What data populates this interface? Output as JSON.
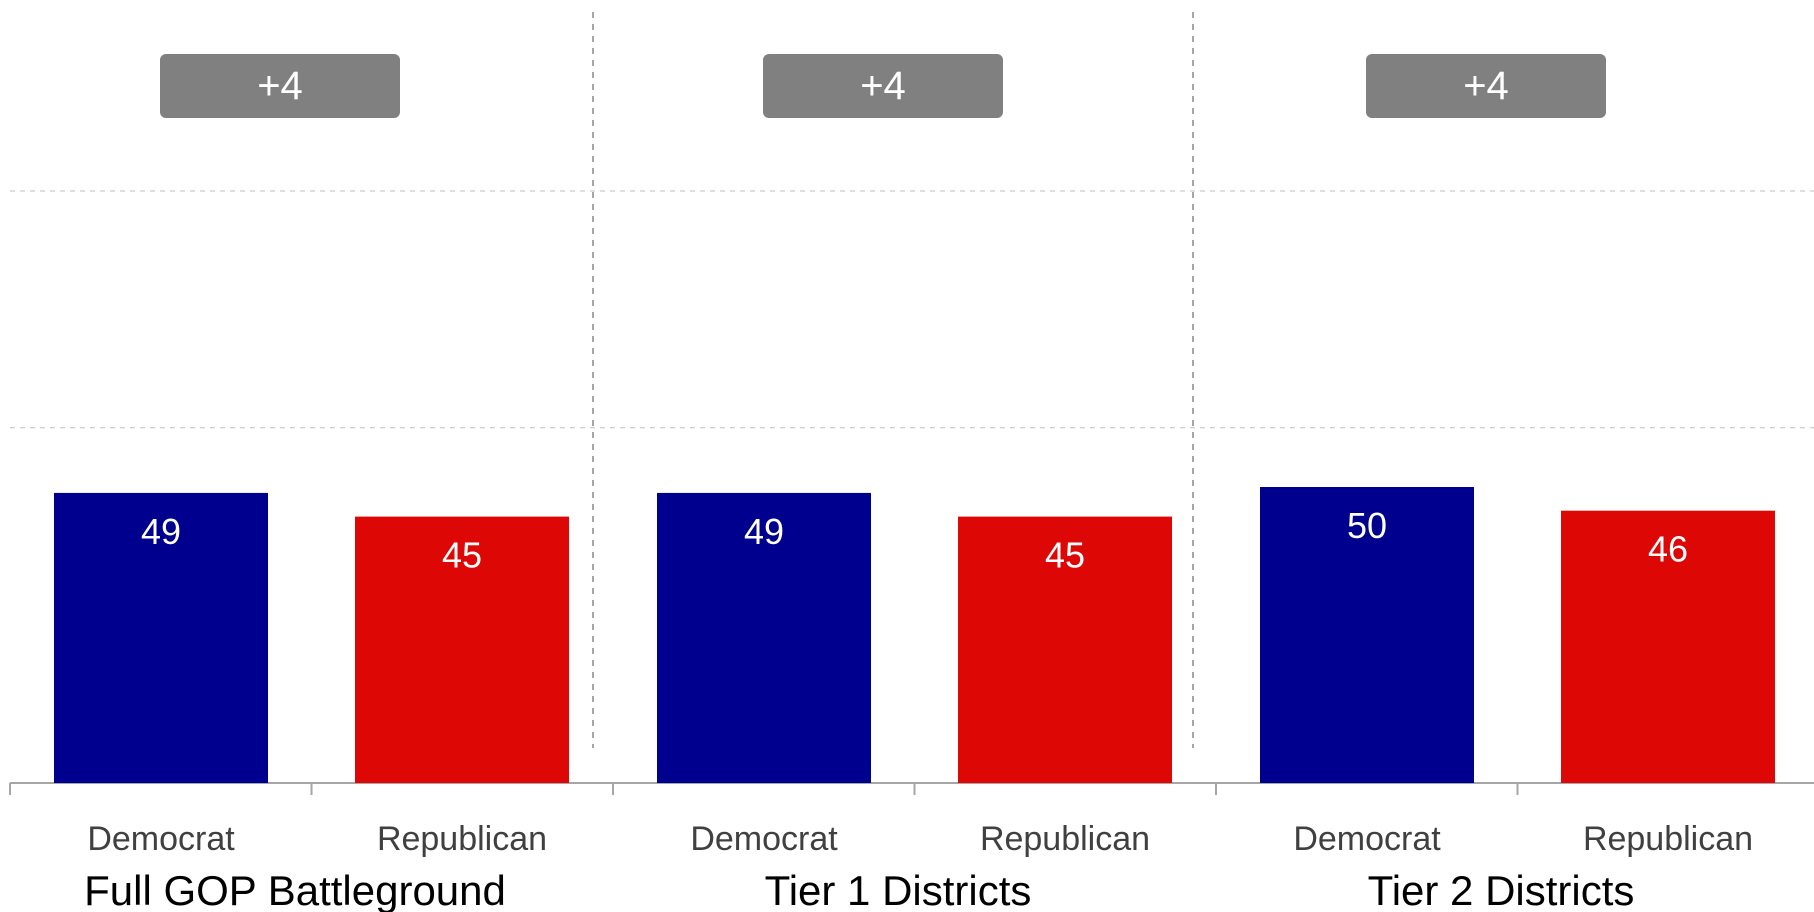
{
  "chart_data": {
    "type": "bar",
    "groups": [
      {
        "name": "Full GOP Battleground",
        "margin_label": "+4",
        "categories": [
          "Democrat",
          "Republican"
        ],
        "values": [
          49,
          45
        ],
        "value_labels": [
          "49",
          "45"
        ]
      },
      {
        "name": "Tier 1 Districts",
        "margin_label": "+4",
        "categories": [
          "Democrat",
          "Republican"
        ],
        "values": [
          49,
          45
        ],
        "value_labels": [
          "49",
          "45"
        ]
      },
      {
        "name": "Tier 2 Districts",
        "margin_label": "+4",
        "categories": [
          "Democrat",
          "Republican"
        ],
        "values": [
          50,
          46
        ],
        "value_labels": [
          "50",
          "46"
        ]
      }
    ],
    "colors": {
      "Democrat": "#00008e",
      "Republican": "#dd0806",
      "margin_badge": "#808080",
      "grid": "#bfbfbf",
      "axis": "#a6a6a6"
    },
    "ylim": [
      0,
      100
    ],
    "grid": true,
    "xlabel": "",
    "ylabel": ""
  }
}
